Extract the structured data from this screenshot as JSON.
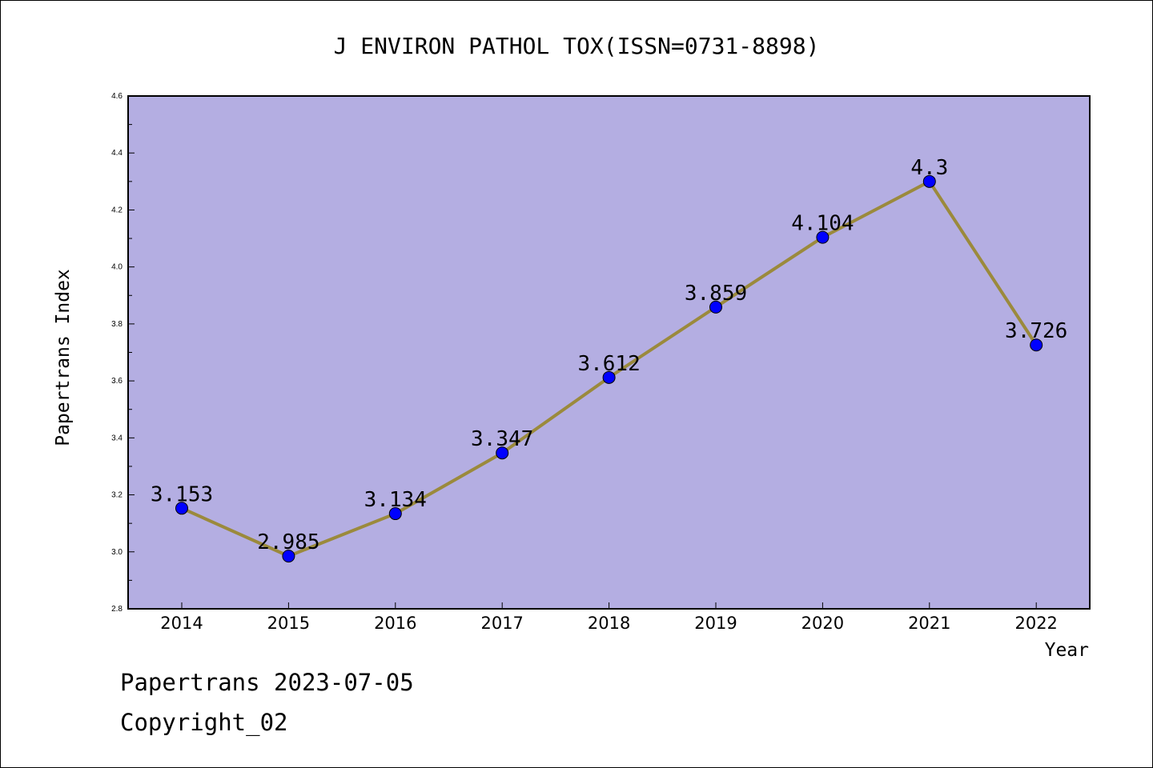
{
  "chart_data": {
    "type": "line",
    "title": "J ENVIRON PATHOL TOX(ISSN=0731-8898)",
    "xlabel": "Year",
    "ylabel": "Papertrans Index",
    "categories": [
      "2014",
      "2015",
      "2016",
      "2017",
      "2018",
      "2019",
      "2020",
      "2021",
      "2022"
    ],
    "series": [
      {
        "values": [
          3.153,
          2.985,
          3.134,
          3.347,
          3.612,
          3.859,
          4.104,
          4.3,
          3.726
        ],
        "labels": [
          "3.153",
          "2.985",
          "3.134",
          "3.347",
          "3.612",
          "3.859",
          "4.104",
          "4.3",
          "3.726"
        ],
        "line_color": "#9b8a3c",
        "marker_color": "#0000ff"
      }
    ],
    "ylim": [
      2.8,
      4.6
    ],
    "yticks": [
      2.8,
      3.0,
      3.2,
      3.4,
      3.6,
      3.8,
      4.0,
      4.2,
      4.4,
      4.6
    ],
    "ytick_labels": [
      "2.8",
      "3.0",
      "3.2",
      "3.4",
      "3.6",
      "3.8",
      "4.0",
      "4.2",
      "4.4",
      "4.6"
    ],
    "grid": false,
    "plot_background": "#b4aee2"
  },
  "footer": {
    "date_text": "Papertrans 2023-07-05",
    "copyright_text": "Copyright_02"
  }
}
